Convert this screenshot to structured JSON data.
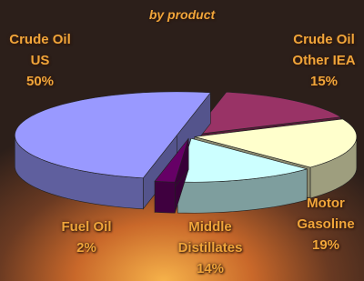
{
  "chart_data": {
    "type": "pie3d",
    "subtitle": "by product",
    "categories": [
      "Crude Oil Other IEA",
      "Motor Gasoline",
      "Middle Distillates",
      "Fuel Oil",
      "Crude Oil US"
    ],
    "values": [
      15,
      19,
      14,
      2,
      50
    ],
    "value_labels": [
      "15%",
      "19%",
      "14%",
      "2%",
      "50%"
    ],
    "colors": [
      "#993366",
      "#ffffcc",
      "#ccffff",
      "#660066",
      "#9999ff"
    ]
  }
}
